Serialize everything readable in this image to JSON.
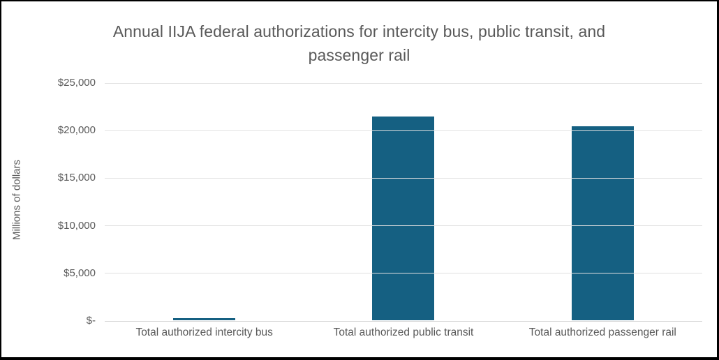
{
  "chart_data": {
    "type": "bar",
    "title": "Annual IIJA federal authorizations for intercity bus, public transit, and passenger rail",
    "ylabel": "Millions of dollars",
    "xlabel": "",
    "categories": [
      "Total authorized intercity bus",
      "Total authorized public transit",
      "Total authorized passenger rail"
    ],
    "values": [
      200,
      21400,
      20400
    ],
    "ylim": [
      0,
      25000
    ],
    "ytick_step": 5000,
    "ytick_labels": [
      "$-",
      "$5,000",
      "$10,000",
      "$15,000",
      "$20,000",
      "$25,000"
    ],
    "grid": true,
    "legend": "none",
    "colors": {
      "bar_fill": "#156082",
      "gridline": "#e1e1e1",
      "axis_line": "#d2d2d2",
      "text": "#595959",
      "frame_border": "#000000",
      "background": "#ffffff"
    }
  }
}
